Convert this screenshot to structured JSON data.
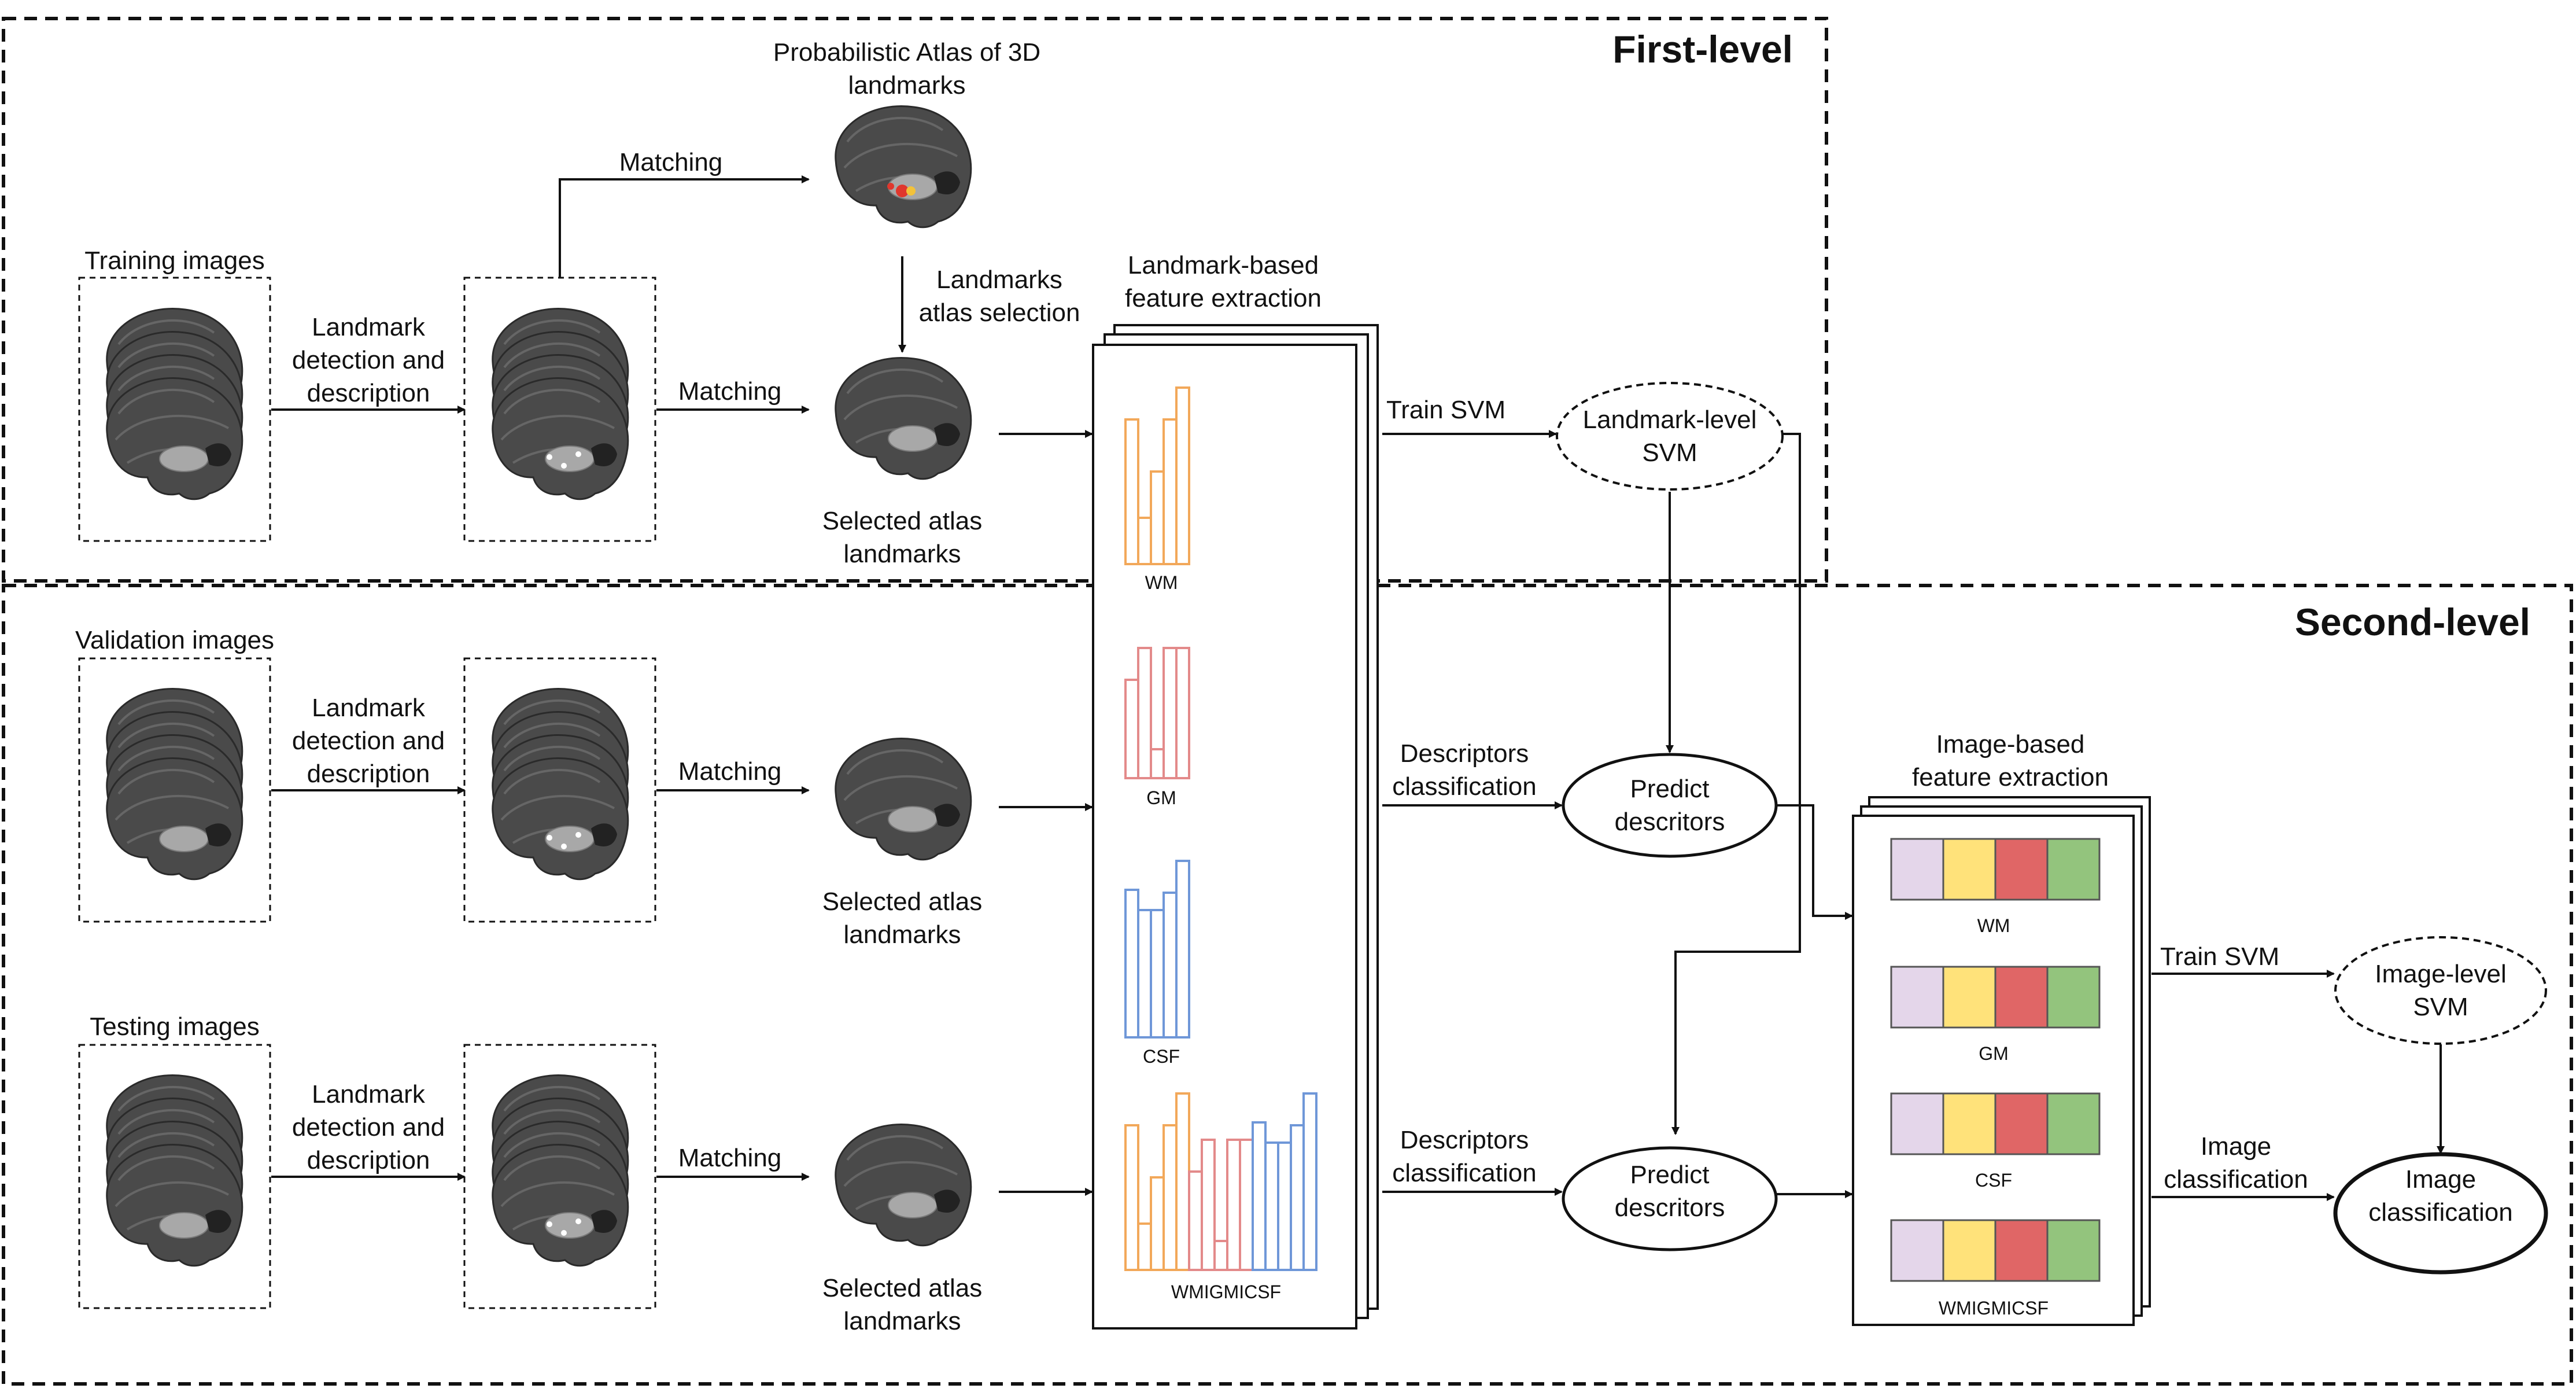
{
  "sections": {
    "first_level": "First-level",
    "second_level": "Second-level"
  },
  "inputs": {
    "training": "Training images",
    "validation": "Validation images",
    "testing": "Testing images"
  },
  "steps": {
    "landmark_detection": [
      "Landmark",
      "detection and",
      "description"
    ],
    "matching": "Matching",
    "atlas_title": [
      "Probabilistic Atlas of 3D",
      "landmarks"
    ],
    "landmarks_atlas_selection": [
      "Landmarks",
      "atlas selection"
    ],
    "selected_atlas": [
      "Selected atlas",
      "landmarks"
    ],
    "landmark_feature_extraction": [
      "Landmark-based",
      "feature extraction"
    ],
    "train_svm": "Train SVM",
    "landmark_svm": [
      "Landmark-level",
      "SVM"
    ],
    "descriptors_classification": [
      "Descriptors",
      "classification"
    ],
    "predict_descriptors": [
      "Predict",
      "descritors"
    ],
    "image_feature_extraction": [
      "Image-based",
      "feature extraction"
    ],
    "image_svm": [
      "Image-level",
      "SVM"
    ],
    "image_classification_edge": [
      "Image",
      "classification"
    ],
    "image_classification_node": [
      "Image",
      "classification"
    ]
  },
  "histogram_labels": [
    "WM",
    "GM",
    "CSF",
    "WMIGMICSF"
  ],
  "image_feature_labels": [
    "WM",
    "GM",
    "CSF",
    "WMIGMICSF"
  ],
  "colors": {
    "wm": "#f2a85a",
    "gm": "#e38a8a",
    "csf": "#6f97d8",
    "bar_purple": "#e4d6ea",
    "bar_yellow": "#ffe27a",
    "bar_red": "#e06666",
    "bar_green": "#93c47d"
  }
}
